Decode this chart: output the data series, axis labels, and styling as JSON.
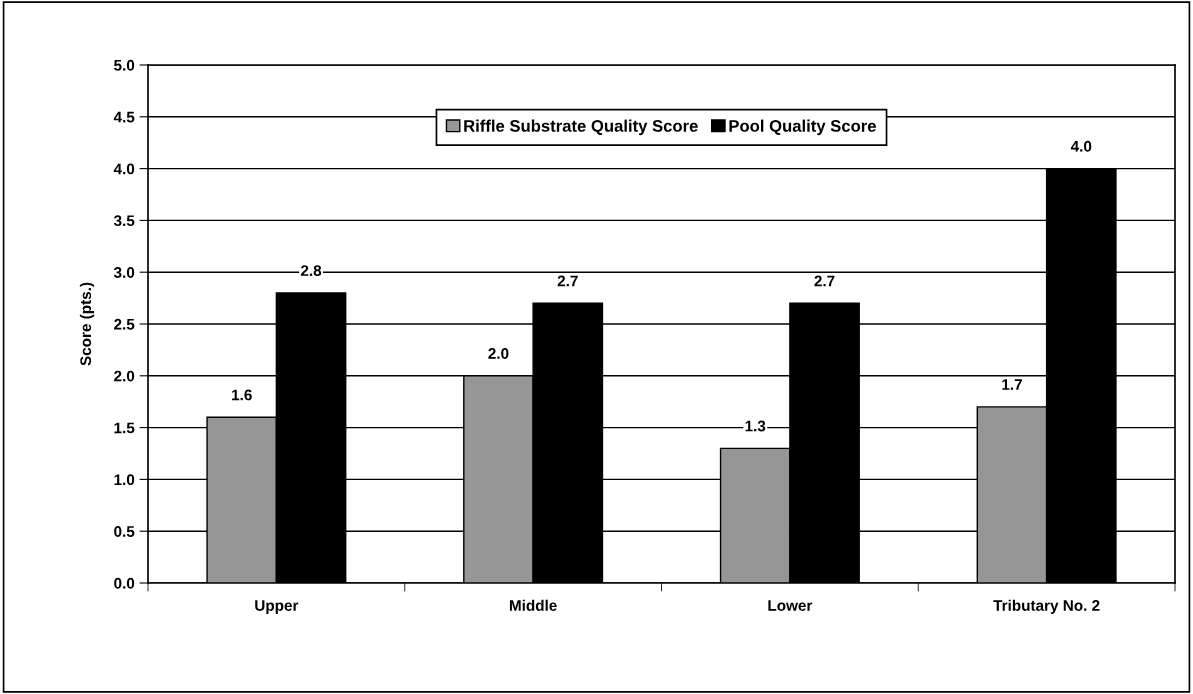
{
  "chart_data": {
    "type": "bar",
    "ylabel": "Score (pts.)",
    "categories": [
      "Upper",
      "Middle",
      "Lower",
      "Tributary No. 2"
    ],
    "series": [
      {
        "name": "Riffle Substrate Quality Score",
        "color": "#969696",
        "values": [
          1.6,
          2.0,
          1.3,
          1.7
        ],
        "value_labels": [
          "1.6",
          "2.0",
          "1.3",
          "1.7"
        ]
      },
      {
        "name": "Pool Quality Score",
        "color": "#000000",
        "values": [
          2.8,
          2.7,
          2.7,
          4.0
        ],
        "value_labels": [
          "2.8",
          "2.7",
          "2.7",
          "4.0"
        ]
      }
    ],
    "ylim": [
      0,
      5
    ],
    "yticks": [
      {
        "value": 0,
        "label": "0.0"
      },
      0.5,
      {
        "value": 1,
        "label": "1.0"
      },
      1.5,
      {
        "value": 2,
        "label": "2.0"
      },
      2.5,
      {
        "value": 3,
        "label": "3.0"
      },
      3.5,
      {
        "value": 4,
        "label": "4.0"
      },
      4.5,
      {
        "value": 5,
        "label": "5.0"
      }
    ],
    "grid": "y",
    "legend": "top"
  }
}
